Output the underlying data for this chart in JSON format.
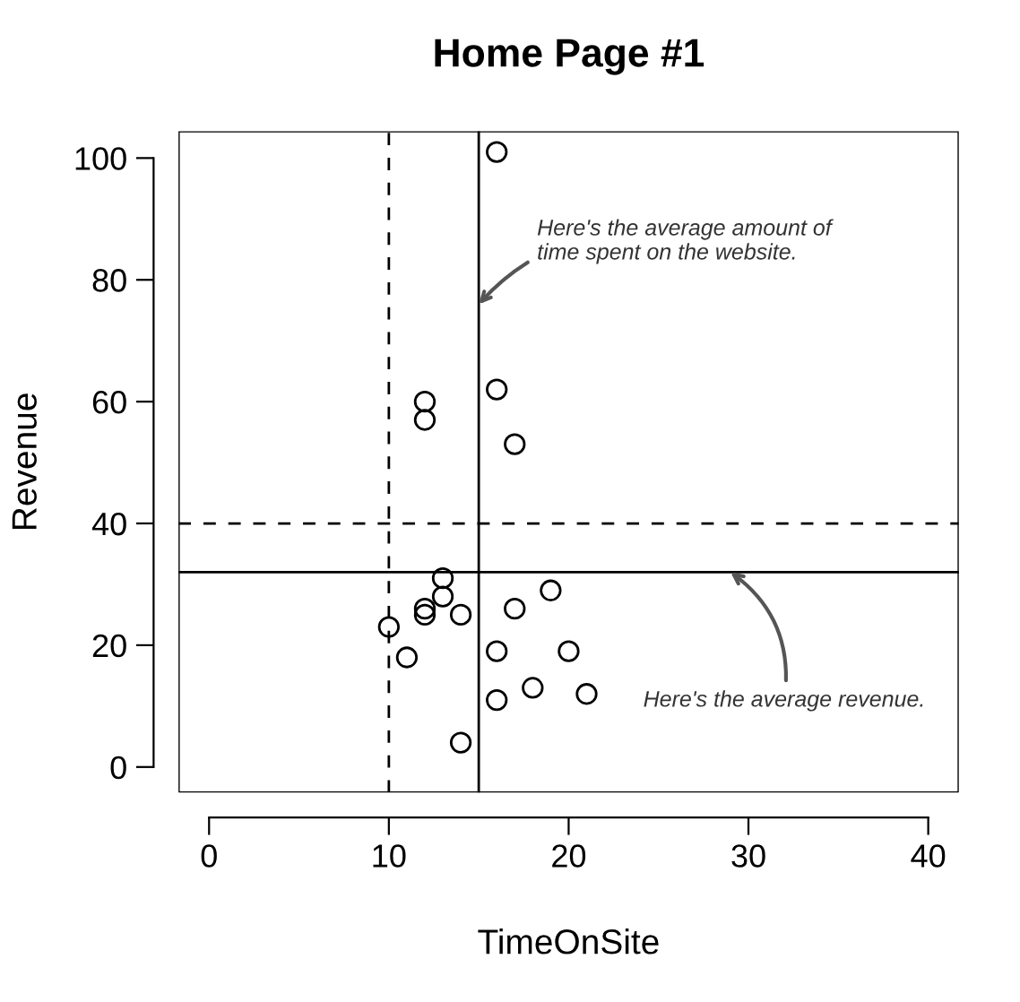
{
  "chart_data": {
    "type": "scatter",
    "title": "Home Page #1",
    "xlabel": "TimeOnSite",
    "ylabel": "Revenue",
    "x": [
      16,
      12,
      12,
      16,
      17,
      10,
      11,
      12,
      12,
      13,
      13,
      14,
      17,
      19,
      16,
      20,
      16,
      18,
      21,
      14
    ],
    "series": [
      {
        "color": "#000000",
        "values": [
          101,
          60,
          57,
          62,
          53,
          23,
          18,
          26,
          25,
          31,
          28,
          25,
          26,
          29,
          19,
          19,
          11,
          13,
          12,
          4
        ]
      }
    ],
    "marker": "circle",
    "grid": false,
    "legend": false,
    "xlim": [
      -1.7,
      41.7
    ],
    "xticks": [
      0,
      10,
      20,
      30,
      40
    ],
    "ylim": [
      -4.2,
      104.4
    ],
    "yticks": [
      0,
      20,
      40,
      60,
      80,
      100
    ],
    "ref_lines": [
      {
        "axis": "x",
        "value": 10,
        "line_style": "dashed",
        "color": "#000000"
      },
      {
        "axis": "x",
        "value": 15,
        "line_style": "solid",
        "color": "#000000"
      },
      {
        "axis": "y",
        "value": 40,
        "line_style": "dashed",
        "color": "#000000"
      },
      {
        "axis": "y",
        "value": 32,
        "line_style": "solid",
        "color": "#000000"
      }
    ],
    "annotations": [
      {
        "text": "Here's the average amount of\ntime spent on the website.",
        "x": 15,
        "y": 76
      },
      {
        "text": "Here's the average revenue.",
        "x": 29,
        "y": 32
      }
    ]
  }
}
